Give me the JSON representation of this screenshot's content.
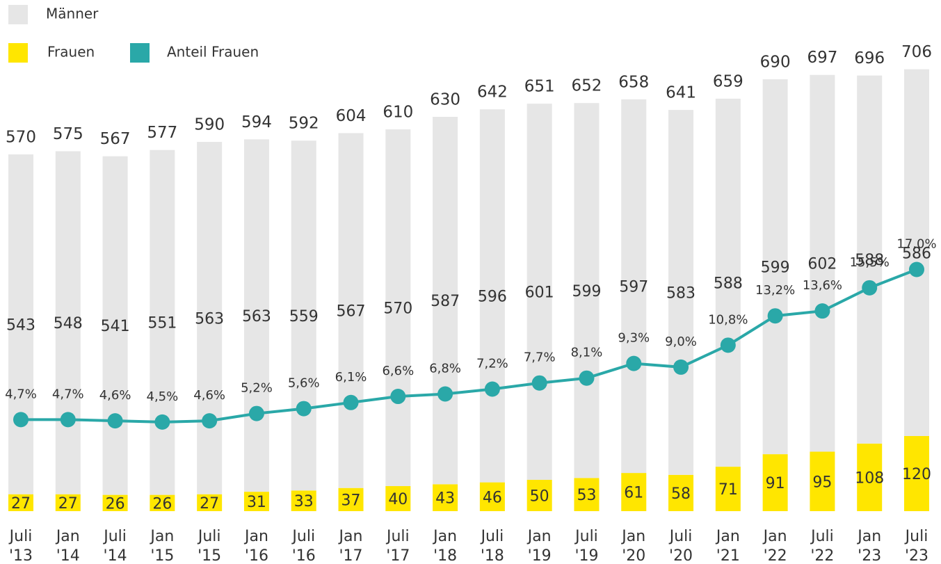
{
  "chart_data": {
    "type": "bar",
    "stacked": true,
    "categories": [
      "Juli '13",
      "Jan '14",
      "Juli '14",
      "Jan '15",
      "Juli '15",
      "Jan '16",
      "Juli '16",
      "Jan '17",
      "Juli '17",
      "Jan '18",
      "Juli '18",
      "Jan '19",
      "Juli '19",
      "Jan '20",
      "Juli '20",
      "Jan '21",
      "Jan '22",
      "Juli '22",
      "Jan '23",
      "Juli '23"
    ],
    "series": [
      {
        "name": "Frauen",
        "color": "#ffe600",
        "values": [
          27,
          27,
          26,
          26,
          27,
          31,
          33,
          37,
          40,
          43,
          46,
          50,
          53,
          61,
          58,
          71,
          91,
          95,
          108,
          120
        ]
      },
      {
        "name": "Männer",
        "color": "#e6e6e6",
        "values": [
          543,
          548,
          541,
          551,
          563,
          563,
          559,
          567,
          570,
          587,
          596,
          601,
          599,
          597,
          583,
          588,
          599,
          602,
          588,
          586
        ]
      },
      {
        "name": "Anteil Frauen",
        "type": "line",
        "axis": "y2",
        "color": "#2aa8a8",
        "values": [
          4.7,
          4.7,
          4.6,
          4.5,
          4.6,
          5.2,
          5.6,
          6.1,
          6.6,
          6.8,
          7.2,
          7.7,
          8.1,
          9.3,
          9.0,
          10.8,
          13.2,
          13.6,
          15.5,
          17.0
        ],
        "value_labels": [
          "4,7%",
          "4,7%",
          "4,6%",
          "4,5%",
          "4,6%",
          "5,2%",
          "5,6%",
          "6,1%",
          "6,6%",
          "6,8%",
          "7,2%",
          "7,7%",
          "8,1%",
          "9,3%",
          "9,0%",
          "10,8%",
          "13,2%",
          "13,6%",
          "15,5%",
          "17,0%"
        ]
      }
    ],
    "totals": [
      570,
      575,
      567,
      577,
      590,
      594,
      592,
      604,
      610,
      630,
      642,
      651,
      652,
      658,
      641,
      659,
      690,
      697,
      696,
      706
    ],
    "ylim": [
      0,
      780
    ],
    "y2lim": [
      -2.8,
      37.2
    ]
  }
}
